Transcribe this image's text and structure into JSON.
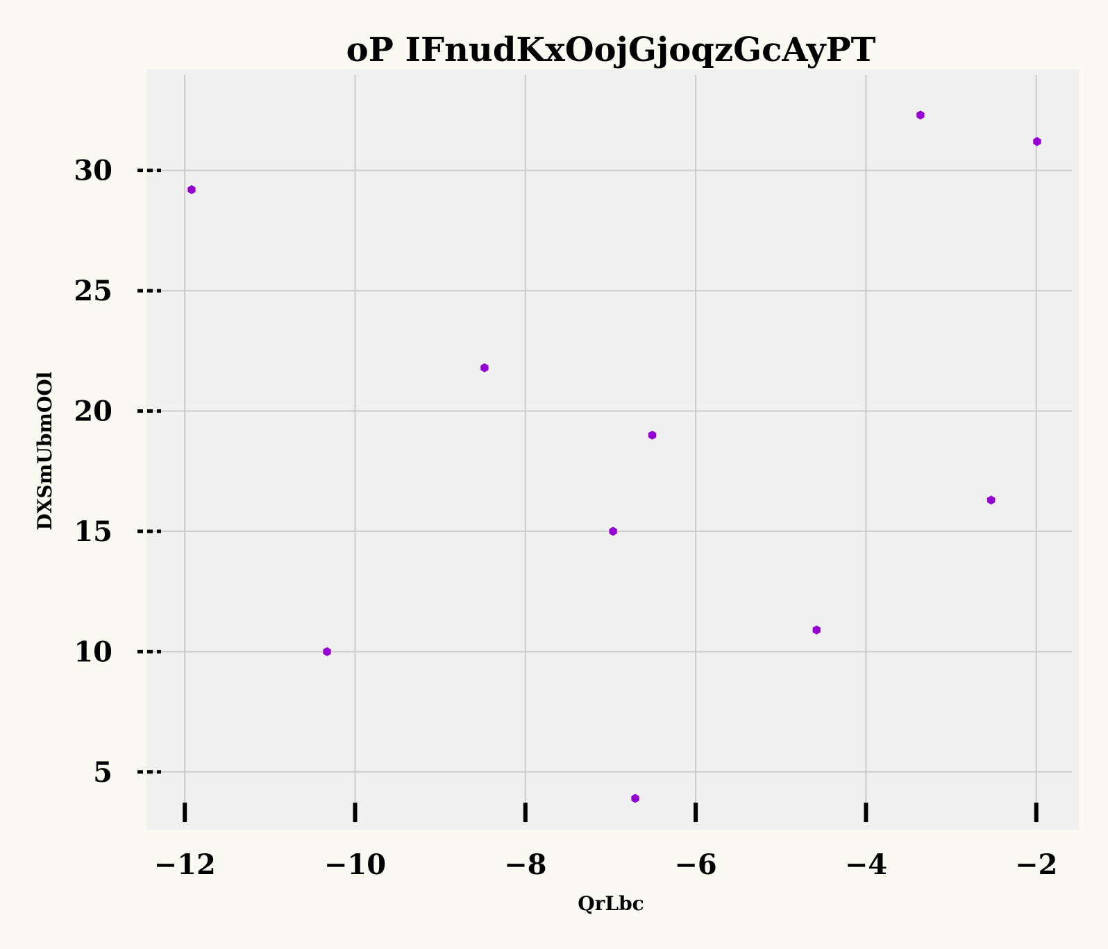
{
  "chart_data": {
    "type": "scatter",
    "title": "oP IFnudKxOojGjoqzGcAyPT",
    "xlabel": "QrLbc",
    "ylabel": "DXSmUbmOOl",
    "xlim": [
      -12.45,
      -1.5
    ],
    "ylim": [
      2.6,
      34.2
    ],
    "xticks": [
      -12,
      -10,
      -8,
      -6,
      -4,
      -2
    ],
    "xtick_labels": [
      "−12",
      "−10",
      "−8",
      "−6",
      "−4",
      "−2"
    ],
    "yticks": [
      5,
      10,
      15,
      20,
      25,
      30
    ],
    "ytick_labels": [
      "5",
      "10",
      "15",
      "20",
      "25",
      "30"
    ],
    "grid": true,
    "colors": {
      "marker": "#9400d3",
      "plot_background": "#f0f0f0",
      "figure_background": "#fafaf3",
      "grid": "#cbcbcb"
    },
    "series": [
      {
        "name": "points",
        "x": [
          -11.92,
          -10.33,
          -8.48,
          -6.97,
          -6.51,
          -6.71,
          -4.58,
          -3.36,
          -2.53,
          -1.99
        ],
        "y": [
          29.2,
          10.0,
          21.8,
          15.0,
          19.0,
          3.9,
          10.9,
          32.3,
          16.3,
          31.2
        ]
      }
    ]
  }
}
